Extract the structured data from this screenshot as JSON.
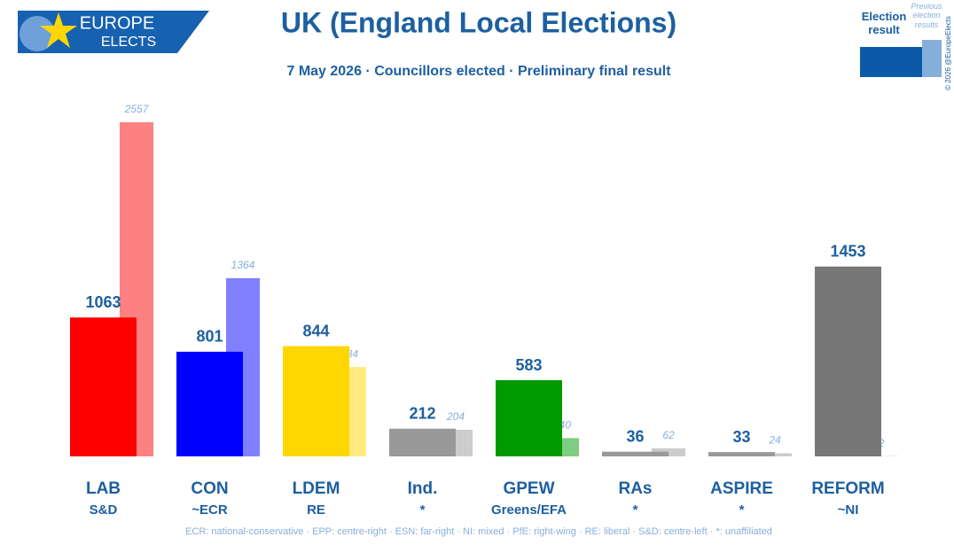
{
  "chart_data": {
    "type": "bar",
    "title": "UK (England Local Elections)",
    "subtitle": "7 May 2026 · Councillors elected · Preliminary final result",
    "logo": [
      "EUROPE",
      "ELECTS"
    ],
    "copyright": "© 2026 @EuropeElects",
    "categories": [
      "LAB",
      "CON",
      "LDEM",
      "Ind.",
      "GPEW",
      "RAs",
      "ASPIRE",
      "REFORM"
    ],
    "groups": [
      "S&D",
      "~ECR",
      "RE",
      "*",
      "Greens/EFA",
      "*",
      "*",
      "~NI"
    ],
    "series": [
      {
        "name": "Election result",
        "legend_color": "#0b5aa8",
        "colors": [
          "#ff0000",
          "#0000ff",
          "#ffd700",
          "#999999",
          "#009900",
          "#999999",
          "#999999",
          "#777777"
        ],
        "values": [
          1063,
          801,
          844,
          212,
          583,
          36,
          33,
          1453
        ]
      },
      {
        "name": "Previous election results",
        "legend_color": "#86aedb",
        "colors": [
          "#ff8080",
          "#8080ff",
          "#ffeb80",
          "#cccccc",
          "#80cc80",
          "#cccccc",
          "#cccccc",
          "#bbbbbb"
        ],
        "values": [
          2557,
          1364,
          684,
          204,
          140,
          62,
          24,
          2
        ]
      }
    ],
    "footnote": "ECR: national-conservative · EPP: centre-right · ESN: far-right · NI: mixed · PfE: right-wing · RE: liberal · S&D: centre-left · *: unaffiliated"
  }
}
